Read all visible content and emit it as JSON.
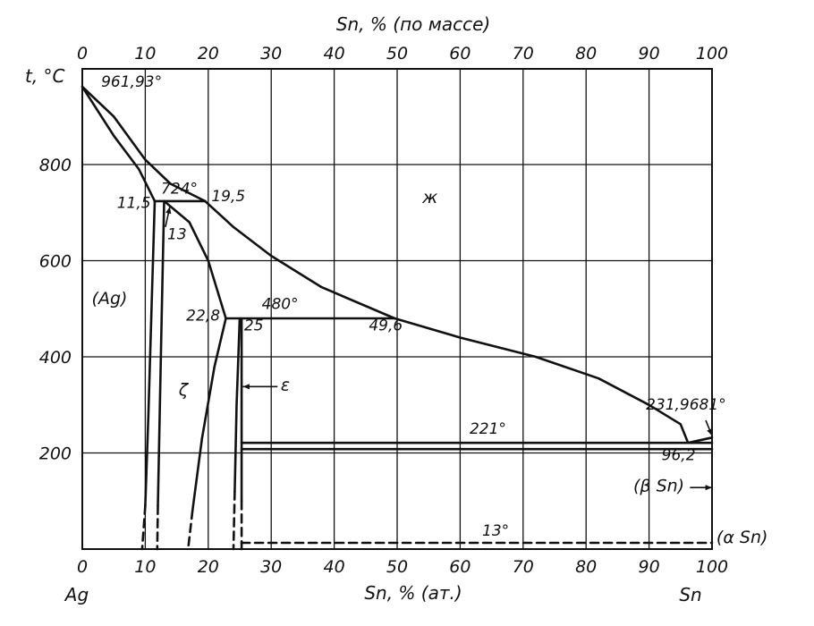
{
  "chart_data": {
    "type": "line",
    "title": "",
    "top_axis_label": "Sn, % (по массе)",
    "top_ticks": [
      "0",
      "10",
      "20",
      "30",
      "40",
      "50",
      "60",
      "70",
      "80",
      "90",
      "100"
    ],
    "bottom_axis_label": "Sn, % (ат.)",
    "bottom_ticks": [
      "0",
      "10",
      "20",
      "30",
      "40",
      "50",
      "60",
      "70",
      "80",
      "90",
      "100"
    ],
    "left_end_label": "Ag",
    "right_end_label": "Sn",
    "ylabel": "t, °C",
    "y_ticks": [
      "200",
      "400",
      "600",
      "800"
    ],
    "xlim": [
      0,
      100
    ],
    "ylim": [
      0,
      1000
    ],
    "grid": true,
    "series": [
      {
        "style": "solid",
        "points": [
          [
            0,
            961.93
          ],
          [
            5,
            900
          ],
          [
            10,
            810
          ],
          [
            14,
            760
          ],
          [
            19.5,
            724
          ]
        ]
      },
      {
        "style": "solid",
        "points": [
          [
            19.5,
            724
          ],
          [
            24,
            670
          ],
          [
            30,
            610
          ],
          [
            38,
            545
          ],
          [
            49.6,
            480
          ],
          [
            60,
            440
          ],
          [
            72,
            400
          ],
          [
            82,
            355
          ],
          [
            90,
            300
          ],
          [
            95,
            260
          ],
          [
            96.2,
            221
          ],
          [
            100,
            231.9681
          ]
        ]
      },
      {
        "style": "solid",
        "points": [
          [
            0,
            961.93
          ],
          [
            5,
            860
          ],
          [
            9,
            790
          ],
          [
            11.5,
            724
          ]
        ]
      },
      {
        "style": "solid",
        "points": [
          [
            11.5,
            724
          ],
          [
            11,
            500
          ],
          [
            10.5,
            280
          ],
          [
            10,
            90
          ]
        ]
      },
      {
        "style": "dashed",
        "points": [
          [
            10,
            90
          ],
          [
            9.5,
            0
          ]
        ]
      },
      {
        "style": "solid",
        "points": [
          [
            13,
            724
          ],
          [
            12.6,
            480
          ],
          [
            12.2,
            220
          ],
          [
            12,
            90
          ]
        ]
      },
      {
        "style": "dashed",
        "points": [
          [
            12,
            90
          ],
          [
            11.9,
            0
          ]
        ]
      },
      {
        "style": "solid",
        "points": [
          [
            13,
            724
          ],
          [
            17,
            680
          ],
          [
            20,
            600
          ],
          [
            22.8,
            480
          ]
        ]
      },
      {
        "style": "solid",
        "points": [
          [
            22.8,
            480
          ],
          [
            21,
            380
          ],
          [
            19,
            230
          ],
          [
            17.5,
            80
          ]
        ]
      },
      {
        "style": "dashed",
        "points": [
          [
            17.5,
            80
          ],
          [
            16.8,
            0
          ]
        ]
      },
      {
        "style": "solid",
        "points": [
          [
            25,
            480
          ],
          [
            24.5,
            300
          ],
          [
            24.2,
            120
          ]
        ]
      },
      {
        "style": "dashed",
        "points": [
          [
            24.2,
            120
          ],
          [
            24,
            0
          ]
        ]
      },
      {
        "style": "solid",
        "points": [
          [
            25.3,
            480
          ],
          [
            25.3,
            100
          ]
        ]
      },
      {
        "style": "dashed",
        "points": [
          [
            25.3,
            100
          ],
          [
            25.3,
            0
          ]
        ]
      },
      {
        "style": "solid",
        "points": [
          [
            11.5,
            724
          ],
          [
            19.5,
            724
          ]
        ]
      },
      {
        "style": "solid",
        "points": [
          [
            22.8,
            480
          ],
          [
            49.6,
            480
          ]
        ]
      },
      {
        "style": "solid",
        "points": [
          [
            25.3,
            221
          ],
          [
            100,
            221
          ]
        ]
      },
      {
        "style": "solid",
        "points": [
          [
            25.3,
            208
          ],
          [
            100,
            208
          ]
        ]
      },
      {
        "style": "dashed",
        "points": [
          [
            25.3,
            13
          ],
          [
            100,
            13
          ]
        ]
      }
    ],
    "annotations": [
      {
        "text": "961,93°",
        "x": 3,
        "y": 961.93
      },
      {
        "text": "724°",
        "x": 12.5,
        "y": 740
      },
      {
        "text": "19,5",
        "x": 20.5,
        "y": 724
      },
      {
        "text": "11,5",
        "x": 5.5,
        "y": 710
      },
      {
        "text": "13",
        "x": 13.5,
        "y": 645
      },
      {
        "text": "480°",
        "x": 28.5,
        "y": 500
      },
      {
        "text": "22,8",
        "x": 16.5,
        "y": 475
      },
      {
        "text": "25",
        "x": 25.7,
        "y": 455
      },
      {
        "text": "49,6",
        "x": 45.5,
        "y": 455
      },
      {
        "text": "231,9681°",
        "x": 89.5,
        "y": 290
      },
      {
        "text": "221°",
        "x": 61.5,
        "y": 240
      },
      {
        "text": "96,2",
        "x": 92,
        "y": 185
      },
      {
        "text": "13°",
        "x": 63.5,
        "y": 28
      }
    ],
    "phase_labels": [
      {
        "text": "ж",
        "x": 54,
        "y": 720
      },
      {
        "text": "(Ag)",
        "x": 1.5,
        "y": 510
      },
      {
        "text": "ζ",
        "x": 15.3,
        "y": 320
      },
      {
        "text": "ε",
        "x": 31.5,
        "y": 330
      },
      {
        "text": "(β Sn)",
        "x": 87.5,
        "y": 120
      },
      {
        "text": "(α Sn)",
        "x": 100.7,
        "y": 13
      }
    ]
  }
}
